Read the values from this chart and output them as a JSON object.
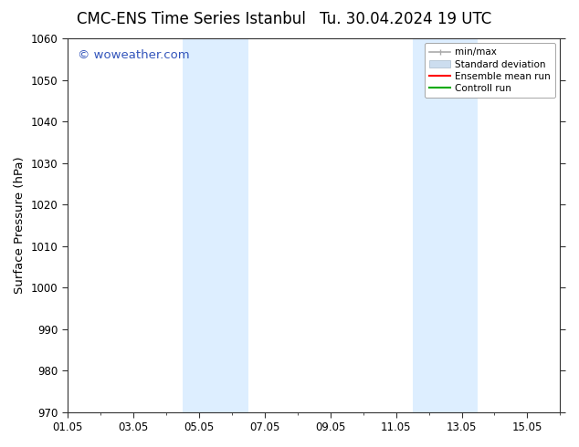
{
  "title": "CMC-ENS Time Series Istanbul",
  "title2": "Tu. 30.04.2024 19 UTC",
  "ylabel": "Surface Pressure (hPa)",
  "ylim": [
    970,
    1060
  ],
  "yticks": [
    970,
    980,
    990,
    1000,
    1010,
    1020,
    1030,
    1040,
    1050,
    1060
  ],
  "xlim": [
    0,
    15
  ],
  "x_tick_labels": [
    "01.05",
    "03.05",
    "05.05",
    "07.05",
    "09.05",
    "11.05",
    "13.05",
    "15.05"
  ],
  "x_tick_positions": [
    0,
    2,
    4,
    6,
    8,
    10,
    12,
    14
  ],
  "shaded_regions": [
    {
      "start": 3.5,
      "end": 5.5,
      "color": "#ddeeff"
    },
    {
      "start": 10.5,
      "end": 12.5,
      "color": "#ddeeff"
    }
  ],
  "watermark": "© woweather.com",
  "watermark_color": "#3355bb",
  "background_color": "#ffffff",
  "spine_color": "#333333",
  "tick_color": "#333333",
  "minmax_color": "#aaaaaa",
  "std_color": "#ccddef",
  "ensemble_color": "#ff0000",
  "control_color": "#00aa00",
  "title_fontsize": 12,
  "tick_fontsize": 8.5,
  "label_fontsize": 9.5,
  "watermark_fontsize": 9.5,
  "legend_fontsize": 7.5,
  "fig_width": 6.34,
  "fig_height": 4.9,
  "dpi": 100
}
